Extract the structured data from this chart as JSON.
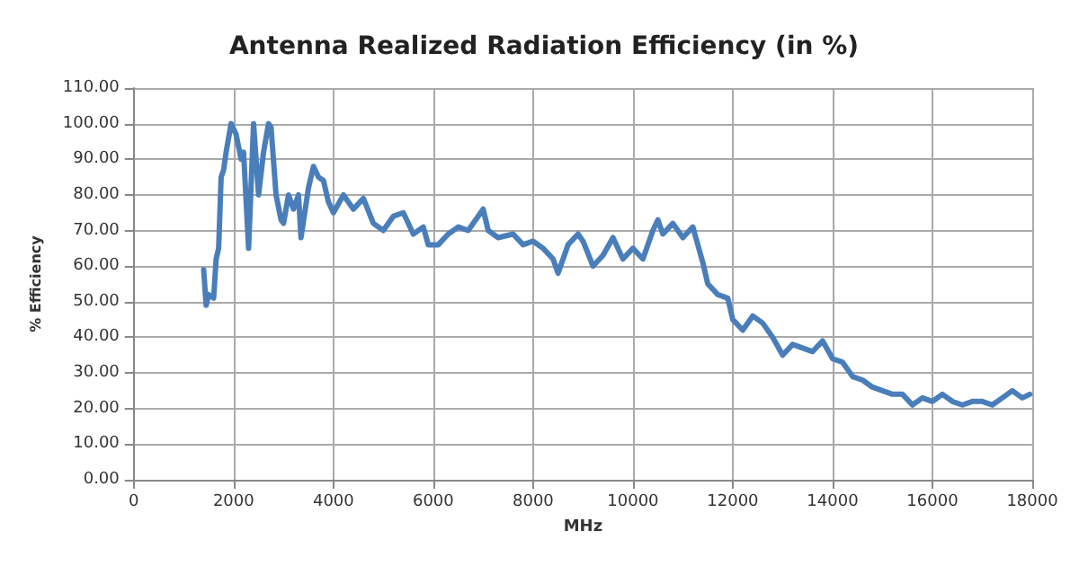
{
  "chart_data": {
    "type": "line",
    "title": "Antenna Realized Radiation Efficiency (in %)",
    "xlabel": "MHz",
    "ylabel": "% Efficiency",
    "xlim": [
      0,
      18000
    ],
    "xticks": [
      0,
      2000,
      4000,
      6000,
      8000,
      10000,
      12000,
      14000,
      16000,
      18000
    ],
    "ylim": [
      0,
      110
    ],
    "yticks": [
      {
        "value": 0,
        "label": "0.00"
      },
      {
        "value": 10,
        "label": "10.00"
      },
      {
        "value": 20,
        "label": "20.00"
      },
      {
        "value": 30,
        "label": "30.00"
      },
      {
        "value": 40,
        "label": "40.00"
      },
      {
        "value": 50,
        "label": "50.00"
      },
      {
        "value": 60,
        "label": "60.00"
      },
      {
        "value": 70,
        "label": "70.00"
      },
      {
        "value": 80,
        "label": "80.00"
      },
      {
        "value": 90,
        "label": "90.00"
      },
      {
        "value": 100,
        "label": "100.00"
      },
      {
        "value": 110,
        "label": "110.00"
      }
    ],
    "grid": true,
    "marker": "none",
    "line_style": "solid",
    "series": [
      {
        "color": "#4a7ebb",
        "x": [
          1400,
          1450,
          1500,
          1600,
          1650,
          1700,
          1750,
          1800,
          1850,
          1950,
          2050,
          2150,
          2200,
          2300,
          2400,
          2500,
          2600,
          2700,
          2750,
          2850,
          2950,
          3000,
          3100,
          3200,
          3300,
          3350,
          3500,
          3600,
          3700,
          3800,
          3900,
          4000,
          4200,
          4400,
          4600,
          4800,
          5000,
          5200,
          5400,
          5600,
          5800,
          5900,
          6100,
          6300,
          6500,
          6700,
          6900,
          7000,
          7100,
          7300,
          7600,
          7800,
          8000,
          8200,
          8400,
          8500,
          8700,
          8900,
          9000,
          9200,
          9400,
          9600,
          9800,
          10000,
          10200,
          10400,
          10500,
          10600,
          10800,
          11000,
          11200,
          11400,
          11500,
          11700,
          11900,
          12000,
          12200,
          12400,
          12600,
          12800,
          13000,
          13200,
          13400,
          13600,
          13800,
          14000,
          14200,
          14400,
          14600,
          14800,
          15000,
          15200,
          15400,
          15600,
          15800,
          16000,
          16200,
          16400,
          16600,
          16800,
          17000,
          17200,
          17400,
          17600,
          17800,
          17950
        ],
        "values": [
          59,
          49,
          52,
          51,
          62,
          65,
          85,
          87,
          92,
          100,
          97,
          90,
          92,
          65,
          100,
          80,
          92,
          100,
          99,
          80,
          73,
          72,
          80,
          76,
          80,
          68,
          82,
          88,
          85,
          84,
          78,
          75,
          80,
          76,
          79,
          72,
          70,
          74,
          75,
          69,
          71,
          66,
          66,
          69,
          71,
          70,
          74,
          76,
          70,
          68,
          69,
          66,
          67,
          65,
          62,
          58,
          66,
          69,
          67,
          60,
          63,
          68,
          62,
          65,
          62,
          70,
          73,
          69,
          72,
          68,
          71,
          61,
          55,
          52,
          51,
          45,
          42,
          46,
          44,
          40,
          35,
          38,
          37,
          36,
          39,
          34,
          33,
          29,
          28,
          26,
          25,
          24,
          24,
          21,
          23,
          22,
          24,
          22,
          21,
          22,
          22,
          21,
          23,
          25,
          23,
          24
        ]
      }
    ]
  }
}
